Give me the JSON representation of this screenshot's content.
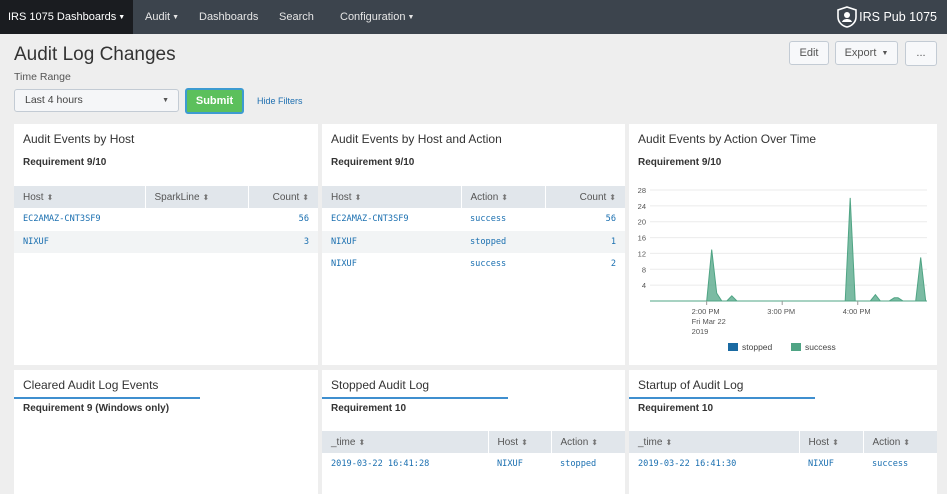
{
  "nav": {
    "app_label": "IRS 1075 Dashboards",
    "items": [
      "Audit",
      "Dashboards",
      "Search",
      "Configuration"
    ],
    "brand": "IRS Pub 1075"
  },
  "header": {
    "title": "Audit Log Changes",
    "edit_label": "Edit",
    "export_label": "Export",
    "more_label": "..."
  },
  "filters": {
    "time_range_label": "Time Range",
    "time_range_value": "Last 4 hours",
    "submit_label": "Submit",
    "hide_filters_label": "Hide Filters"
  },
  "panels": {
    "by_host": {
      "title": "Audit Events by Host",
      "requirement": "Requirement 9/10",
      "columns": [
        "Host",
        "SparkLine",
        "Count"
      ],
      "rows": [
        {
          "host": "EC2AMAZ-CNT3SF9",
          "count": "56"
        },
        {
          "host": "NIXUF",
          "count": "3"
        }
      ]
    },
    "by_host_action": {
      "title": "Audit Events by Host and Action",
      "requirement": "Requirement 9/10",
      "columns": [
        "Host",
        "Action",
        "Count"
      ],
      "rows": [
        {
          "host": "EC2AMAZ-CNT3SF9",
          "action": "success",
          "count": "56"
        },
        {
          "host": "NIXUF",
          "action": "stopped",
          "count": "1"
        },
        {
          "host": "NIXUF",
          "action": "success",
          "count": "2"
        }
      ]
    },
    "by_action_time": {
      "title": "Audit Events by Action Over Time",
      "requirement": "Requirement 9/10"
    },
    "cleared": {
      "title": "Cleared Audit Log Events",
      "requirement": "Requirement 9 (Windows only)"
    },
    "stopped": {
      "title": "Stopped Audit Log",
      "requirement": "Requirement 10",
      "columns": [
        "_time",
        "Host",
        "Action"
      ],
      "rows": [
        {
          "time": "2019-03-22 16:41:28",
          "host": "NIXUF",
          "action": "stopped"
        }
      ]
    },
    "startup": {
      "title": "Startup of Audit Log",
      "requirement": "Requirement 10",
      "columns": [
        "_time",
        "Host",
        "Action"
      ],
      "rows": [
        {
          "time": "2019-03-22 16:41:30",
          "host": "NIXUF",
          "action": "success"
        }
      ]
    }
  },
  "chart_data": {
    "type": "area",
    "title": "Audit Events by Action Over Time",
    "xlabel": "",
    "ylabel": "",
    "ylim": [
      0,
      28
    ],
    "yticks": [
      4,
      8,
      12,
      16,
      20,
      24,
      28
    ],
    "xticks": [
      {
        "minute": 0,
        "label": "2:00 PM",
        "sub1": "Fri Mar 22",
        "sub2": "2019"
      },
      {
        "minute": 60,
        "label": "3:00 PM",
        "sub1": "",
        "sub2": ""
      },
      {
        "minute": 120,
        "label": "4:00 PM",
        "sub1": "",
        "sub2": ""
      }
    ],
    "x_range_minutes": [
      -45,
      175
    ],
    "series": [
      {
        "name": "stopped",
        "color": "#1a6aa2",
        "points": []
      },
      {
        "name": "success",
        "color": "#4fa484",
        "points": [
          [
            -45,
            0
          ],
          [
            0,
            0
          ],
          [
            4,
            13
          ],
          [
            8,
            2
          ],
          [
            12,
            0
          ],
          [
            16,
            0
          ],
          [
            20,
            1.3
          ],
          [
            24,
            0
          ],
          [
            110,
            0
          ],
          [
            114,
            26
          ],
          [
            118,
            0
          ],
          [
            130,
            0
          ],
          [
            134,
            1.6
          ],
          [
            138,
            0
          ],
          [
            145,
            0
          ],
          [
            149,
            0.8
          ],
          [
            152,
            0.8
          ],
          [
            156,
            0
          ],
          [
            166,
            0
          ],
          [
            170,
            11
          ],
          [
            174,
            0
          ],
          [
            175,
            0
          ]
        ]
      }
    ]
  }
}
